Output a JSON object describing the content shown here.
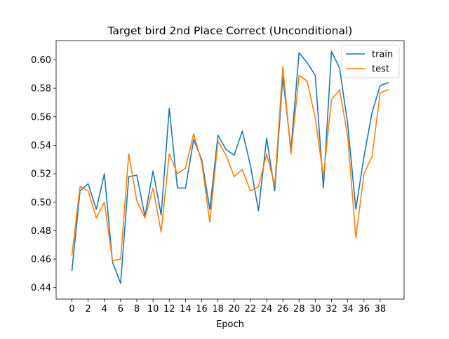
{
  "chart_data": {
    "type": "line",
    "title": "Target bird 2nd Place Correct (Unconditional)",
    "xlabel": "Epoch",
    "ylabel": "",
    "xlim": [
      -1.95,
      40.95
    ],
    "ylim": [
      0.432,
      0.6135
    ],
    "x_ticks": [
      0,
      2,
      4,
      6,
      8,
      10,
      12,
      14,
      16,
      18,
      20,
      22,
      24,
      26,
      28,
      30,
      32,
      34,
      36,
      38
    ],
    "y_ticks": [
      0.44,
      0.46,
      0.48,
      0.5,
      0.52,
      0.54,
      0.56,
      0.58,
      0.6
    ],
    "y_tick_labels": [
      "0.44",
      "0.46",
      "0.48",
      "0.50",
      "0.52",
      "0.54",
      "0.56",
      "0.58",
      "0.60"
    ],
    "grid": false,
    "legend_position": "top-right",
    "x": [
      0,
      1,
      2,
      3,
      4,
      5,
      6,
      7,
      8,
      9,
      10,
      11,
      12,
      13,
      14,
      15,
      16,
      17,
      18,
      19,
      20,
      21,
      22,
      23,
      24,
      25,
      26,
      27,
      28,
      29,
      30,
      31,
      32,
      33,
      34,
      35,
      36,
      37,
      38,
      39
    ],
    "series": [
      {
        "name": "train",
        "color": "#1f77b4",
        "values": [
          0.452,
          0.508,
          0.513,
          0.495,
          0.52,
          0.458,
          0.443,
          0.518,
          0.519,
          0.49,
          0.522,
          0.491,
          0.566,
          0.51,
          0.51,
          0.544,
          0.53,
          0.495,
          0.547,
          0.537,
          0.533,
          0.55,
          0.526,
          0.494,
          0.545,
          0.508,
          0.588,
          0.537,
          0.605,
          0.598,
          0.589,
          0.51,
          0.606,
          0.594,
          0.555,
          0.495,
          0.532,
          0.563,
          0.582,
          0.584
        ]
      },
      {
        "name": "test",
        "color": "#ff7f0e",
        "values": [
          0.463,
          0.511,
          0.508,
          0.489,
          0.5,
          0.459,
          0.46,
          0.534,
          0.501,
          0.489,
          0.51,
          0.479,
          0.534,
          0.52,
          0.524,
          0.548,
          0.528,
          0.486,
          0.543,
          0.533,
          0.518,
          0.523,
          0.508,
          0.511,
          0.534,
          0.512,
          0.595,
          0.534,
          0.589,
          0.585,
          0.559,
          0.518,
          0.572,
          0.579,
          0.546,
          0.475,
          0.52,
          0.532,
          0.577,
          0.579
        ]
      }
    ]
  }
}
